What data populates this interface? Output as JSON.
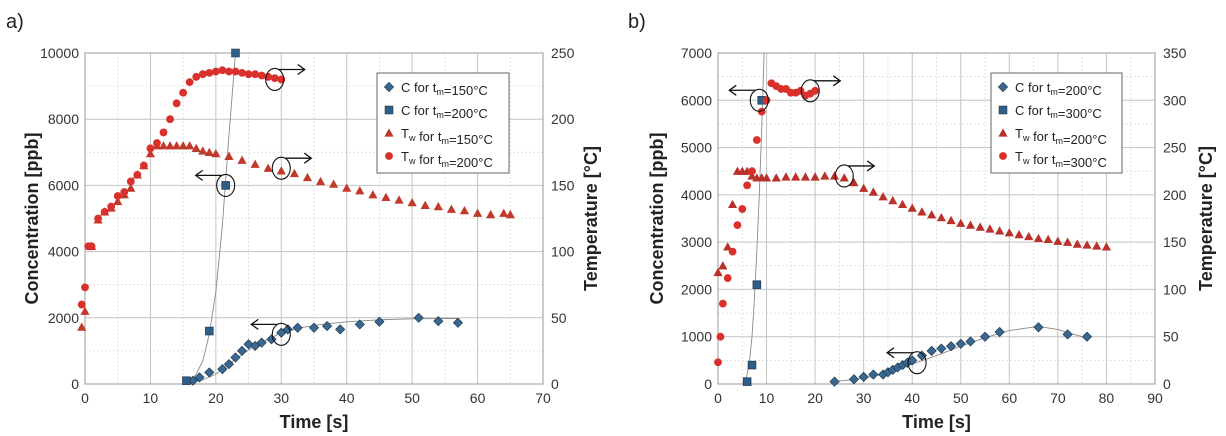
{
  "chart_data": [
    {
      "type": "scatter",
      "panel_label": "a)",
      "xlabel": "Time [s]",
      "ylabel": "Concentration [ppb]",
      "y2label": "Temperature [°C]",
      "xlim": [
        0,
        70
      ],
      "ylim": [
        0,
        10000
      ],
      "y2lim": [
        0,
        250
      ],
      "xticks": [
        0,
        10,
        20,
        30,
        40,
        50,
        60,
        70
      ],
      "yticks": [
        0,
        2000,
        4000,
        6000,
        8000,
        10000
      ],
      "y2ticks": [
        0,
        50,
        100,
        150,
        200,
        250
      ],
      "grid": true,
      "legend_position": "right",
      "series": [
        {
          "name": "C for t_m=150°C",
          "legend": {
            "pre": "C for t",
            "sub": "m",
            "post": "=150°C"
          },
          "axis": "left",
          "marker": "diamond",
          "color": "#3a6890",
          "x": [
            16.5,
            17.5,
            19,
            21,
            22,
            23,
            24,
            25,
            26,
            27,
            28.5,
            30,
            31,
            32.5,
            35,
            37,
            39,
            42,
            45,
            51,
            54,
            57
          ],
          "y": [
            100,
            200,
            350,
            450,
            600,
            800,
            1000,
            1200,
            1150,
            1250,
            1350,
            1550,
            1650,
            1700,
            1700,
            1750,
            1650,
            1800,
            1880,
            2000,
            1900,
            1850
          ]
        },
        {
          "name": "C for t_m=200°C",
          "legend": {
            "pre": "C for t",
            "sub": "m",
            "post": "=200°C"
          },
          "axis": "left",
          "marker": "square",
          "color": "#2f5e86",
          "x": [
            15.5,
            19,
            21.5,
            23
          ],
          "y": [
            100,
            1600,
            6000,
            10000
          ]
        },
        {
          "name": "T_w for t_m=150°C",
          "legend": {
            "pre": "T",
            "sub": "w",
            "post": " for t",
            "sub2": "m",
            "post2": "=150°C"
          },
          "axis": "right",
          "marker": "triangle",
          "color": "#c0392b",
          "x": [
            -0.5,
            0,
            1,
            2,
            3,
            4,
            5,
            6,
            7,
            8,
            9,
            10,
            11,
            12,
            13,
            14,
            15,
            16,
            17,
            18,
            19,
            20,
            22,
            24,
            26,
            28,
            30,
            32,
            34,
            36,
            38,
            40,
            42,
            44,
            46,
            48,
            50,
            52,
            54,
            56,
            58,
            60,
            62,
            64,
            65
          ],
          "y": [
            43,
            55,
            104,
            124,
            130,
            133,
            138,
            143,
            148,
            158,
            165,
            174,
            180,
            180,
            180,
            180,
            180,
            180,
            178,
            176,
            175,
            174,
            172,
            169,
            166,
            163,
            161,
            159,
            156,
            153,
            151,
            148,
            146,
            143,
            141,
            139,
            137,
            135,
            134,
            132,
            131,
            129,
            128,
            129,
            128
          ]
        },
        {
          "name": "T_w for t_m=200°C",
          "legend": {
            "pre": "T",
            "sub": "w",
            "post": " for t",
            "sub2": "m",
            "post2": "=200°C"
          },
          "axis": "right",
          "marker": "circle",
          "color": "#d9302c",
          "x": [
            -0.5,
            0,
            0.5,
            1,
            2,
            3,
            4,
            5,
            6,
            7,
            8,
            9,
            10,
            11,
            12,
            13,
            14,
            15,
            16,
            17,
            18,
            19,
            20,
            21,
            22,
            23,
            24,
            25,
            26,
            27,
            28,
            29,
            30
          ],
          "y": [
            60,
            73,
            104,
            104,
            125,
            130,
            134,
            142,
            145,
            153,
            158,
            165,
            178,
            182,
            190,
            200,
            212,
            220,
            228,
            232,
            234,
            235,
            236,
            237,
            236,
            236,
            235,
            234,
            234,
            233,
            232,
            231,
            230
          ]
        }
      ],
      "annotations": [
        {
          "kind": "circle-arrow",
          "x": 29,
          "y2": 230,
          "dir": "right",
          "tx": 35,
          "ty2": 240
        },
        {
          "kind": "circle-arrow",
          "x": 30,
          "y2": 163,
          "dir": "right",
          "tx": 35,
          "ty2": 173
        },
        {
          "kind": "circle-arrow",
          "x": 21.5,
          "y": 6000,
          "dir": "left",
          "tx": 17,
          "y_t": 6300
        },
        {
          "kind": "circle-arrow",
          "x": 30,
          "y": 1500,
          "dir": "left",
          "tx": 25,
          "y_t": 1900
        }
      ],
      "curves": [
        {
          "axis": "left",
          "x": [
            16,
            17,
            18,
            19,
            20,
            21,
            22,
            23
          ],
          "y": [
            60,
            300,
            700,
            1500,
            2800,
            4800,
            7500,
            10000
          ]
        },
        {
          "axis": "left",
          "x": [
            16,
            18,
            20,
            22,
            24,
            26,
            28,
            30,
            33,
            36,
            40,
            45,
            50,
            55,
            57
          ],
          "y": [
            50,
            120,
            300,
            600,
            900,
            1150,
            1350,
            1550,
            1700,
            1800,
            1880,
            1940,
            1970,
            1980,
            1980
          ]
        }
      ]
    },
    {
      "type": "scatter",
      "panel_label": "b)",
      "xlabel": "Time [s]",
      "ylabel": "Concentration [ppb]",
      "y2label": "Temperature [°C]",
      "xlim": [
        0,
        90
      ],
      "ylim": [
        0,
        7000
      ],
      "y2lim": [
        0,
        350
      ],
      "xticks": [
        0,
        10,
        20,
        30,
        40,
        50,
        60,
        70,
        80,
        90
      ],
      "yticks": [
        0,
        1000,
        2000,
        3000,
        4000,
        5000,
        6000,
        7000
      ],
      "y2ticks": [
        0,
        50,
        100,
        150,
        200,
        250,
        300,
        350
      ],
      "grid": true,
      "legend_position": "right",
      "series": [
        {
          "name": "C for t_m=200°C",
          "legend": {
            "pre": "C for t",
            "sub": "m",
            "post": "=200°C"
          },
          "axis": "left",
          "marker": "diamond",
          "color": "#3a6890",
          "x": [
            24,
            28,
            30,
            32,
            34,
            35,
            36,
            37,
            38,
            39,
            40,
            42,
            44,
            46,
            48,
            50,
            52,
            55,
            58,
            66,
            72,
            76
          ],
          "y": [
            50,
            100,
            150,
            200,
            200,
            250,
            300,
            350,
            400,
            450,
            500,
            600,
            700,
            750,
            800,
            850,
            900,
            1000,
            1100,
            1200,
            1050,
            1000
          ]
        },
        {
          "name": "C for t_m=300°C",
          "legend": {
            "pre": "C for t",
            "sub": "m",
            "post": "=300°C"
          },
          "axis": "left",
          "marker": "square",
          "color": "#2f5e86",
          "x": [
            6,
            7,
            8,
            9
          ],
          "y": [
            50,
            400,
            2100,
            6000
          ]
        },
        {
          "name": "T_w for t_m=200°C",
          "legend": {
            "pre": "T",
            "sub": "w",
            "post": " for t",
            "sub2": "m",
            "post2": "=200°C"
          },
          "axis": "right",
          "marker": "triangle",
          "color": "#b8312a",
          "x": [
            0,
            1,
            2,
            3,
            4,
            5,
            6,
            7,
            8,
            9,
            10,
            12,
            14,
            16,
            18,
            20,
            22,
            24,
            26,
            28,
            30,
            32,
            34,
            36,
            38,
            40,
            42,
            44,
            46,
            48,
            50,
            52,
            54,
            56,
            58,
            60,
            62,
            64,
            66,
            68,
            70,
            72,
            74,
            76,
            78,
            80
          ],
          "y": [
            118,
            125,
            145,
            190,
            225,
            225,
            225,
            220,
            218,
            218,
            218,
            218,
            219,
            219,
            219,
            219,
            220,
            220,
            218,
            213,
            207,
            203,
            198,
            194,
            190,
            186,
            182,
            179,
            176,
            173,
            170,
            168,
            166,
            164,
            162,
            160,
            158,
            156,
            154,
            153,
            151,
            150,
            148,
            147,
            146,
            145
          ]
        },
        {
          "name": "T_w for t_m=300°C",
          "legend": {
            "pre": "T",
            "sub": "w",
            "post": " for t",
            "sub2": "m",
            "post2": "=300°C"
          },
          "axis": "right",
          "marker": "circle",
          "color": "#d9302c",
          "x": [
            0,
            0.5,
            1,
            2,
            3,
            4,
            5,
            6,
            7,
            8,
            9,
            10,
            11,
            12,
            13,
            14,
            15,
            16,
            17,
            18,
            19,
            20
          ],
          "y": [
            23,
            50,
            85,
            112,
            140,
            168,
            185,
            210,
            225,
            258,
            288,
            300,
            318,
            315,
            312,
            312,
            308,
            308,
            310,
            305,
            307,
            310
          ]
        }
      ],
      "annotations": [
        {
          "kind": "circle-arrow",
          "x": 8.5,
          "y2": 300,
          "dir": "left",
          "tx": 3,
          "ty2": 310
        },
        {
          "kind": "circle-arrow",
          "x": 19,
          "y2": 310,
          "dir": "right",
          "tx": 25,
          "ty2": 322
        },
        {
          "kind": "circle-arrow",
          "x": 26,
          "y2": 220,
          "dir": "right",
          "tx": 31,
          "ty2": 231
        },
        {
          "kind": "circle-arrow",
          "x": 41,
          "y": 450,
          "dir": "left",
          "tx": 36,
          "y_t": 800
        }
      ],
      "curves": [
        {
          "axis": "left",
          "x": [
            5.5,
            6,
            6.5,
            7,
            7.5,
            8,
            8.5,
            9,
            9.5
          ],
          "y": [
            50,
            200,
            500,
            1000,
            1800,
            2800,
            4000,
            5400,
            7000
          ]
        },
        {
          "axis": "left",
          "x": [
            24,
            30,
            35,
            40,
            45,
            50,
            55,
            60,
            66,
            70,
            75
          ],
          "y": [
            50,
            120,
            230,
            420,
            600,
            800,
            980,
            1130,
            1220,
            1150,
            1000
          ]
        }
      ]
    }
  ]
}
